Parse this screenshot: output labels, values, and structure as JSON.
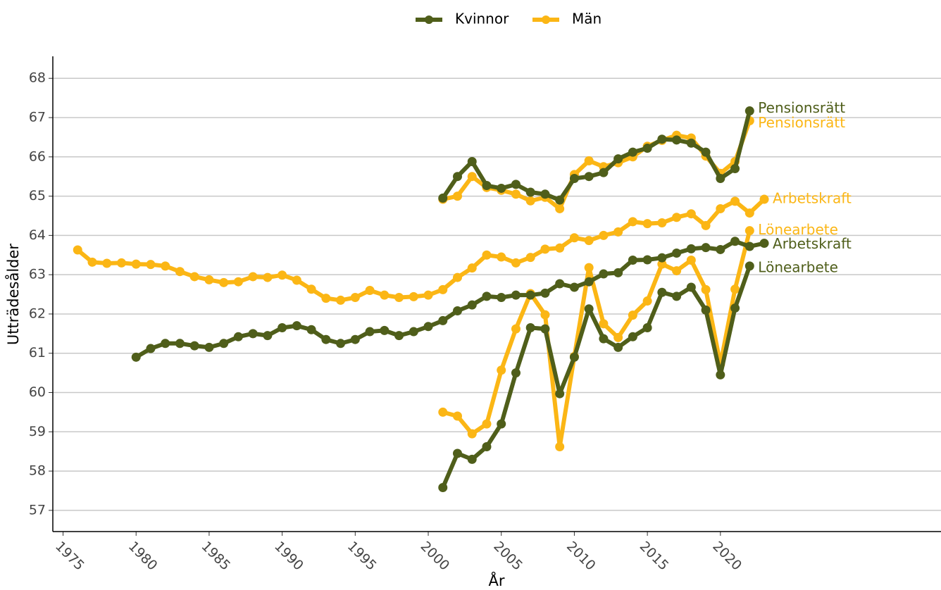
{
  "chart_data": {
    "type": "line",
    "x_label": "År",
    "y_label": "Utträdesålder",
    "legend": [
      {
        "name": "Kvinnor",
        "color": "#4f5e1a"
      },
      {
        "name": "Män",
        "color": "#fbb615"
      }
    ],
    "legend_position": "top",
    "x": [
      1976,
      1977,
      1978,
      1979,
      1980,
      1981,
      1982,
      1983,
      1984,
      1985,
      1986,
      1987,
      1988,
      1989,
      1990,
      1991,
      1992,
      1993,
      1994,
      1995,
      1996,
      1997,
      1998,
      1999,
      2000,
      2001,
      2002,
      2003,
      2004,
      2005,
      2006,
      2007,
      2008,
      2009,
      2010,
      2011,
      2012,
      2013,
      2014,
      2015,
      2016,
      2017,
      2018,
      2019,
      2020,
      2021,
      2022,
      2023
    ],
    "series": [
      {
        "name": "Arbetskraft",
        "color": "#fbb615",
        "values": [
          63.63,
          63.32,
          63.29,
          63.3,
          63.27,
          63.26,
          63.22,
          63.08,
          62.95,
          62.87,
          62.8,
          62.82,
          62.95,
          62.93,
          62.99,
          62.86,
          62.63,
          62.4,
          62.35,
          62.42,
          62.6,
          62.48,
          62.42,
          62.44,
          62.48,
          62.62,
          62.93,
          63.17,
          63.5,
          63.45,
          63.3,
          63.44,
          63.65,
          63.68,
          63.94,
          63.87,
          64.0,
          64.09,
          64.35,
          64.3,
          64.32,
          64.46,
          64.55,
          64.25,
          64.68,
          64.87,
          64.57,
          64.92
        ]
      },
      {
        "name": "Lönearbete",
        "color": "#fbb615",
        "values": [
          null,
          null,
          null,
          null,
          null,
          null,
          null,
          null,
          null,
          null,
          null,
          null,
          null,
          null,
          null,
          null,
          null,
          null,
          null,
          null,
          null,
          null,
          null,
          null,
          null,
          59.5,
          59.4,
          58.95,
          59.2,
          60.57,
          61.62,
          62.52,
          61.98,
          58.62,
          60.92,
          63.18,
          61.75,
          61.4,
          61.97,
          62.33,
          63.27,
          63.1,
          63.37,
          62.62,
          60.72,
          62.63,
          64.12,
          null
        ]
      },
      {
        "name": "Pensionsrätt",
        "color": "#fbb615",
        "values": [
          null,
          null,
          null,
          null,
          null,
          null,
          null,
          null,
          null,
          null,
          null,
          null,
          null,
          null,
          null,
          null,
          null,
          null,
          null,
          null,
          null,
          null,
          null,
          null,
          null,
          64.92,
          65.0,
          65.5,
          65.22,
          65.15,
          65.05,
          64.88,
          64.97,
          64.68,
          65.55,
          65.9,
          65.75,
          65.85,
          66.0,
          66.27,
          66.42,
          66.55,
          66.48,
          66.02,
          65.58,
          65.88,
          66.92,
          null
        ]
      },
      {
        "name": "Arbetskraft",
        "color": "#4f5e1a",
        "values": [
          null,
          null,
          null,
          null,
          60.9,
          61.12,
          61.25,
          61.25,
          61.19,
          61.15,
          61.25,
          61.42,
          61.5,
          61.45,
          61.65,
          61.7,
          61.6,
          61.35,
          61.25,
          61.35,
          61.55,
          61.58,
          61.45,
          61.55,
          61.68,
          61.83,
          62.08,
          62.23,
          62.45,
          62.42,
          62.48,
          62.48,
          62.53,
          62.77,
          62.68,
          62.82,
          63.02,
          63.05,
          63.37,
          63.38,
          63.43,
          63.55,
          63.66,
          63.69,
          63.64,
          63.85,
          63.72,
          63.8
        ]
      },
      {
        "name": "Lönearbete",
        "color": "#4f5e1a",
        "values": [
          null,
          null,
          null,
          null,
          null,
          null,
          null,
          null,
          null,
          null,
          null,
          null,
          null,
          null,
          null,
          null,
          null,
          null,
          null,
          null,
          null,
          null,
          null,
          null,
          null,
          57.58,
          58.45,
          58.3,
          58.62,
          59.2,
          60.5,
          61.65,
          61.62,
          59.97,
          60.9,
          62.13,
          61.37,
          61.15,
          61.42,
          61.65,
          62.55,
          62.45,
          62.68,
          62.1,
          60.45,
          62.15,
          63.22,
          null
        ]
      },
      {
        "name": "Pensionsrätt",
        "color": "#4f5e1a",
        "values": [
          null,
          null,
          null,
          null,
          null,
          null,
          null,
          null,
          null,
          null,
          null,
          null,
          null,
          null,
          null,
          null,
          null,
          null,
          null,
          null,
          null,
          null,
          null,
          null,
          null,
          64.95,
          65.5,
          65.88,
          65.27,
          65.2,
          65.3,
          65.1,
          65.05,
          64.9,
          65.45,
          65.5,
          65.6,
          65.95,
          66.12,
          66.22,
          66.45,
          66.43,
          66.35,
          66.12,
          65.45,
          65.7,
          67.17,
          null
        ]
      }
    ],
    "xlim": [
      1974.3,
      2035.1
    ],
    "xticks": [
      1975,
      1980,
      1985,
      1990,
      1995,
      2000,
      2005,
      2010,
      2015,
      2020
    ],
    "ylim": [
      56.46,
      68.56
    ],
    "yticks": [
      57,
      58,
      59,
      60,
      61,
      62,
      63,
      64,
      65,
      66,
      67,
      68
    ],
    "grid": "horizontal"
  }
}
